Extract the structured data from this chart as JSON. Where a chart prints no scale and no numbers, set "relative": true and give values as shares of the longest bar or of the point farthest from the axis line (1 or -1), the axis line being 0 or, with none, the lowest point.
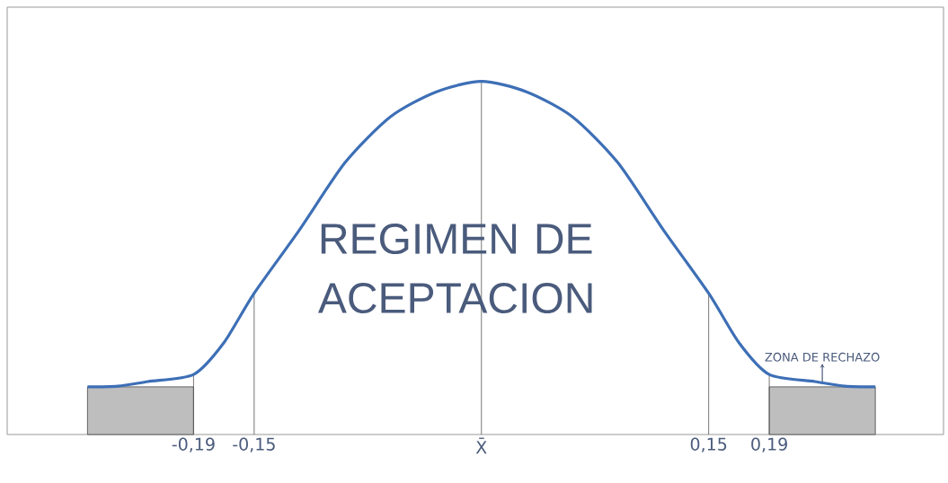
{
  "chart_data": {
    "type": "line",
    "relative": true,
    "color": "#3d6fb6",
    "marker": "none",
    "line_style": "solid",
    "x": [
      -0.26,
      -0.24,
      -0.22,
      -0.19,
      -0.17,
      -0.15,
      -0.12,
      -0.09,
      -0.06,
      -0.03,
      0,
      0.03,
      0.06,
      0.09,
      0.12,
      0.15,
      0.17,
      0.19,
      0.22,
      0.24,
      0.26
    ],
    "values": [
      0.135,
      0.137,
      0.15,
      0.17,
      0.26,
      0.4,
      0.58,
      0.77,
      0.9,
      0.97,
      1.0,
      0.97,
      0.9,
      0.77,
      0.58,
      0.4,
      0.26,
      0.17,
      0.15,
      0.137,
      0.135
    ],
    "xlim": [
      -0.313,
      0.305
    ],
    "xticks": [
      {
        "value": -0.19,
        "label": "-0,19"
      },
      {
        "value": -0.15,
        "label": "-0,15"
      },
      {
        "value": 0,
        "label": "X̄"
      },
      {
        "value": 0.15,
        "label": "0,15"
      },
      {
        "value": 0.19,
        "label": "0,19"
      }
    ],
    "tick_labels": "x",
    "ref_lines": [
      {
        "axis": "x",
        "value": -0.19,
        "color": "#555555"
      },
      {
        "axis": "x",
        "value": -0.15,
        "color": "#555555"
      },
      {
        "axis": "x",
        "value": 0,
        "color": "#555555"
      },
      {
        "axis": "x",
        "value": 0.15,
        "color": "#555555"
      },
      {
        "axis": "x",
        "value": 0.19,
        "color": "#555555"
      }
    ],
    "bands": [
      {
        "axis": "x",
        "from": -0.26,
        "to": -0.19,
        "color": "#444444"
      },
      {
        "axis": "x",
        "from": 0.19,
        "to": 0.26,
        "color": "#444444",
        "label": "ZONA DE RECHAZO"
      }
    ],
    "annotations": [
      "REGIMEN DE ACEPTACION"
    ]
  }
}
